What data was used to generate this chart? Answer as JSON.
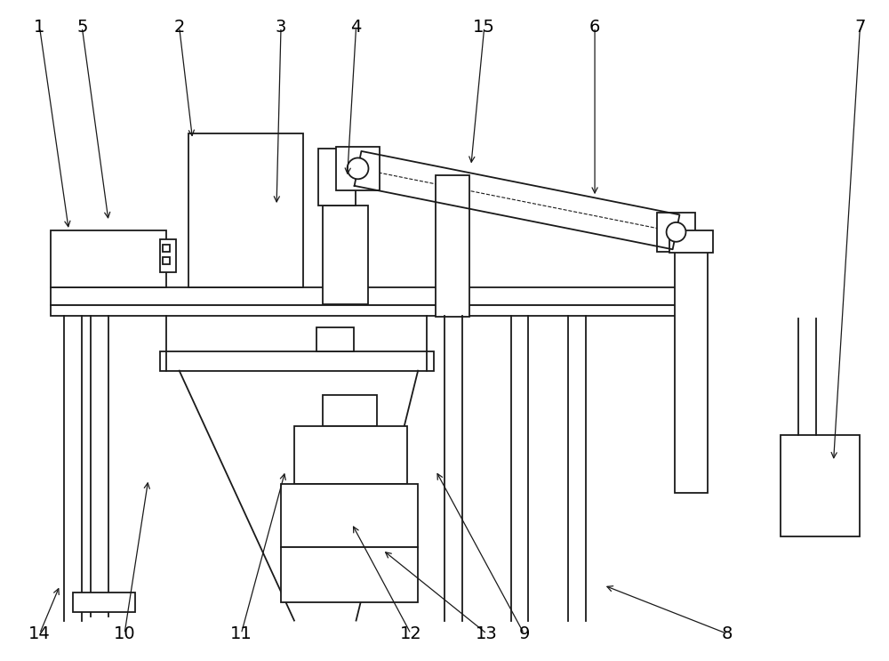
{
  "bg": "#ffffff",
  "lc": "#1a1a1a",
  "lw": 1.3,
  "fw": 10.0,
  "fh": 7.43,
  "labels": [
    [
      "1",
      42,
      28,
      75,
      258
    ],
    [
      "5",
      90,
      28,
      120,
      248
    ],
    [
      "2",
      200,
      28,
      215,
      155
    ],
    [
      "3",
      315,
      28,
      310,
      230
    ],
    [
      "4",
      400,
      28,
      390,
      198
    ],
    [
      "15",
      545,
      28,
      530,
      185
    ],
    [
      "6",
      670,
      28,
      670,
      220
    ],
    [
      "7",
      970,
      28,
      940,
      520
    ],
    [
      "8",
      820,
      715,
      680,
      660
    ],
    [
      "9",
      590,
      715,
      490,
      530
    ],
    [
      "10",
      138,
      715,
      165,
      540
    ],
    [
      "11",
      270,
      715,
      320,
      530
    ],
    [
      "12",
      462,
      715,
      395,
      590
    ],
    [
      "13",
      548,
      715,
      430,
      620
    ],
    [
      "14",
      42,
      715,
      65,
      660
    ]
  ]
}
